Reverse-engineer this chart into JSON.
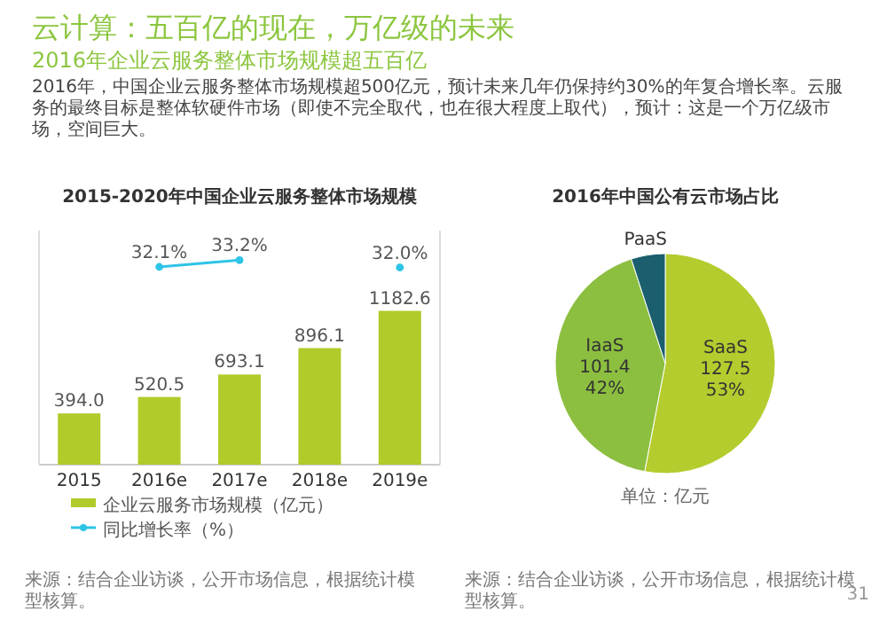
{
  "chart_data": [
    {
      "type": "other",
      "title": "云计算：五百亿的现在，万亿级的未来",
      "subtitle": "2016年企业云服务整体市场规模超五百亿",
      "annotations": [
        "2016年，中国企业云服务整体市场规模超500亿元，预计未来几年仍保持约30%的年复合增长率。云服务的最终目标是整体软硬件市场（即使不完全取代，也在很大程度上取代），预计：这是一个万亿级市场，空间巨大。",
        "31"
      ]
    },
    {
      "type": "bar",
      "title": "2015-2020年中国企业云服务整体市场规模",
      "categories": [
        "2015",
        "2016e",
        "2017e",
        "2018e",
        "2019e"
      ],
      "series": [
        {
          "name": "企业云服务市场规模（亿元）",
          "color": "#b0cb2a",
          "values": [
            394.0,
            520.5,
            693.1,
            896.1,
            1182.6
          ],
          "value_labels": [
            "394.0",
            "520.5",
            "693.1",
            "896.1",
            "1182.6"
          ]
        },
        {
          "name": "同比增长率（%）",
          "type": "line",
          "axis": "y2",
          "marker": "circle",
          "color": "#2ec4e6",
          "values": [
            null,
            32.1,
            33.2,
            null,
            32.0
          ],
          "value_labels": [
            null,
            "32.1%",
            "33.2%",
            null,
            "32.0%"
          ]
        }
      ],
      "ylim": [
        0,
        1800
      ],
      "y2lim": [
        0,
        38
      ],
      "tick_labels": "x",
      "legend": "bottom",
      "annotations": [
        "来源：结合企业访谈，公开市场信息，根据统计模型核算。"
      ]
    },
    {
      "type": "pie",
      "title": "2016年中国公有云市场占比",
      "categories": [
        "SaaS",
        "IaaS",
        "PaaS"
      ],
      "values": [
        53,
        42,
        5
      ],
      "colors": [
        "#b5cc2e",
        "#8cbf3f",
        "#1b5e6e"
      ],
      "value_labels": [
        "127.5\n53%",
        "101.4\n42%",
        null
      ],
      "annotations": [
        "单位：亿元",
        "来源：结合企业访谈，公开市场信息，根据统计模型核算。"
      ]
    }
  ]
}
